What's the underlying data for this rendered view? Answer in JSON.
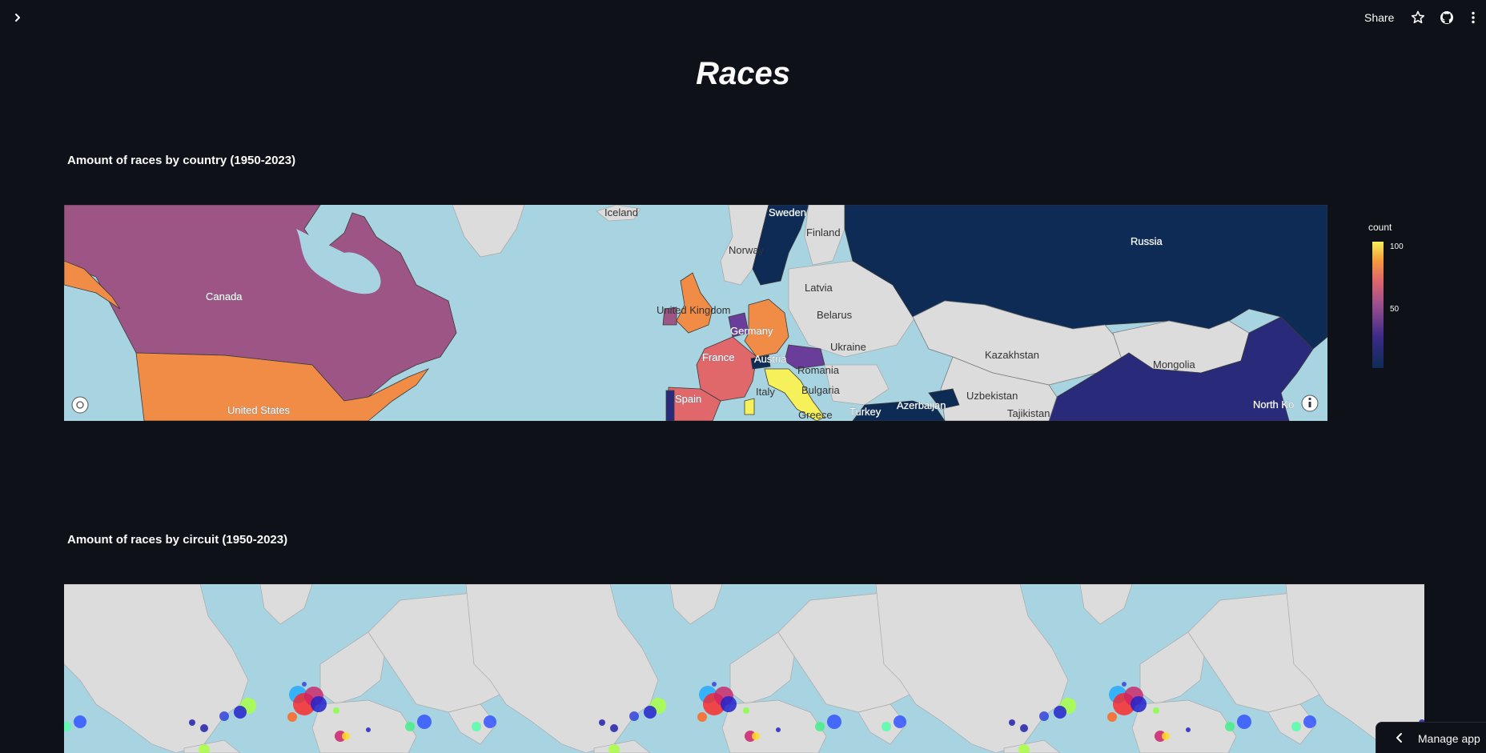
{
  "header": {
    "share_label": "Share",
    "icons": [
      "chevron-right-icon",
      "star-icon",
      "github-icon",
      "more-vert-icon"
    ]
  },
  "page": {
    "title": "Races"
  },
  "sections": [
    {
      "title": "Amount of races by country (1950-2023)"
    },
    {
      "title": "Amount of races by circuit (1950-2023)"
    }
  ],
  "country_map": {
    "legend_title": "count",
    "colorbar_ticks": [
      "100",
      "50"
    ],
    "colors": {
      "ocean": "#a8d3e0",
      "land": "#dcdcdc",
      "scale": [
        "#0d2b55",
        "#3d2a8a",
        "#9b4f8e",
        "#e0686b",
        "#f59a3c",
        "#f6f05a"
      ]
    },
    "labels": {
      "iceland": "Iceland",
      "sweden": "Sweden",
      "finland": "Finland",
      "norway": "Norway",
      "russia": "Russia",
      "latvia": "Latvia",
      "canada": "Canada",
      "uk": "United Kingdom",
      "belarus": "Belarus",
      "germany": "Germany",
      "ukraine": "Ukraine",
      "kazakhstan": "Kazakhstan",
      "mongolia": "Mongolia",
      "france": "France",
      "austria": "Austria",
      "romania": "Romania",
      "italy": "Italy",
      "bulgaria": "Bulgaria",
      "uzbekistan": "Uzbekistan",
      "spain": "Spain",
      "azerbaijan": "Azerbaijan",
      "tajikistan": "Tajikistan",
      "greece": "Greece",
      "turkey": "Turkey",
      "us": "United States",
      "north_korea": "North Ko"
    }
  },
  "manage_app": {
    "label": "Manage app"
  }
}
